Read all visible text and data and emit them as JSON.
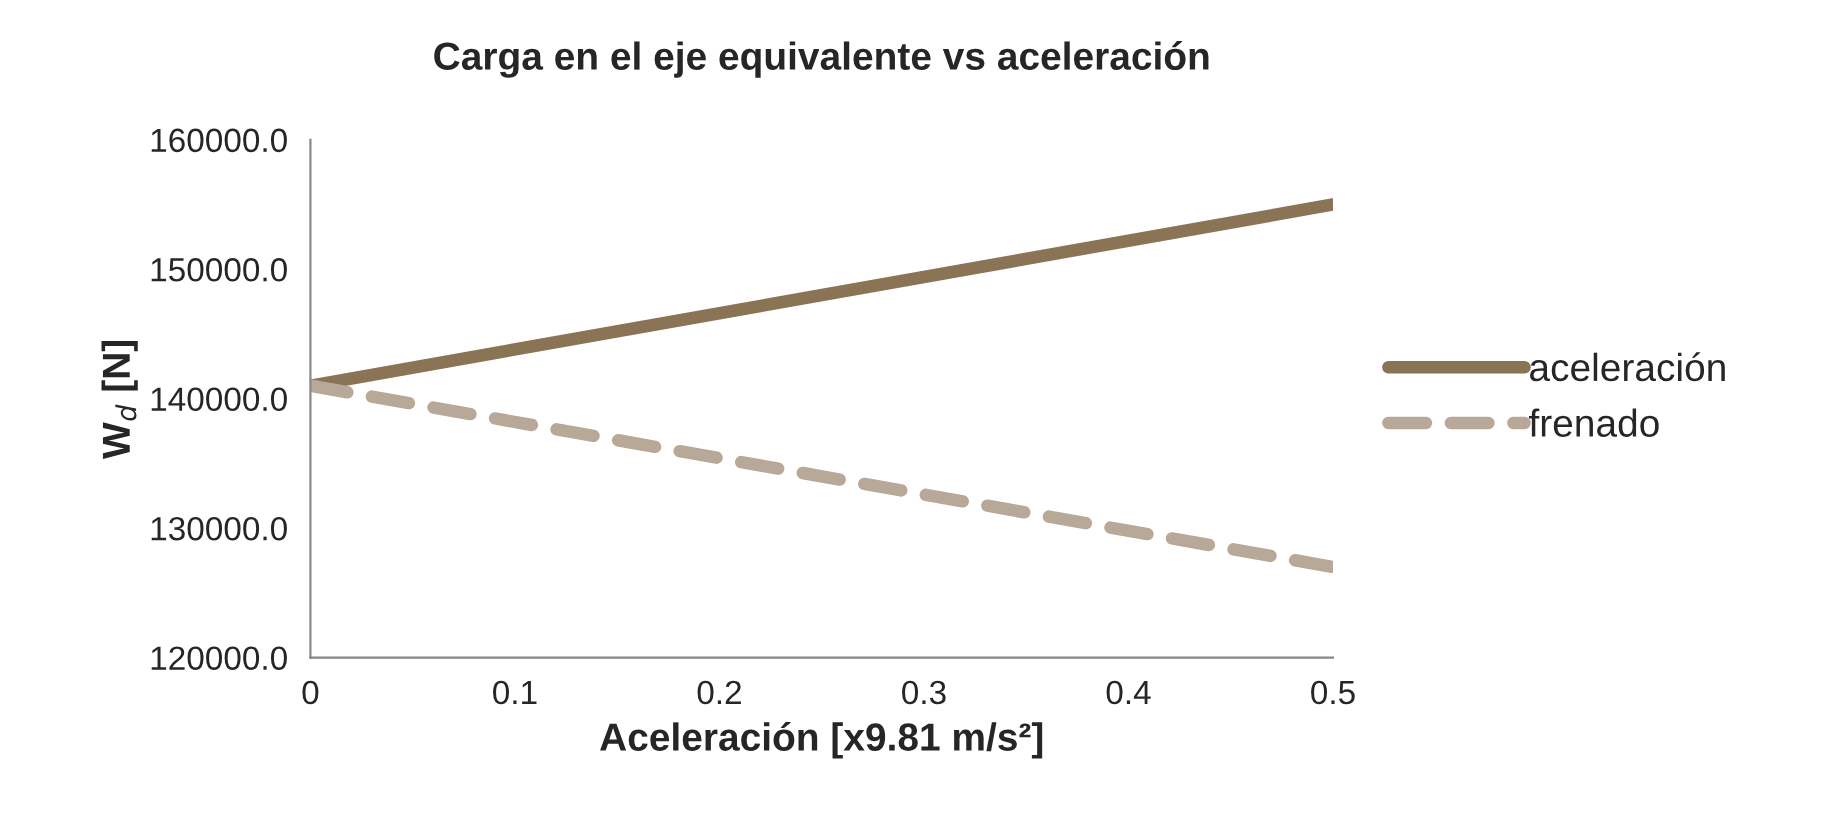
{
  "chart_data": {
    "type": "line",
    "title": "Carga en el eje equivalente vs aceleración",
    "xlabel": "Aceleración [x9.81 m/s²]",
    "ylabel": "W$_{d}$ [N]",
    "x": [
      0,
      0.5
    ],
    "series": [
      {
        "name": "aceleración",
        "color": "#8b7355",
        "values": [
          141000,
          155000
        ],
        "line_style": "solid"
      },
      {
        "name": "frenado",
        "color": "#b8a898",
        "values": [
          141000,
          127000
        ],
        "line_style": "dashed"
      }
    ],
    "xlim": [
      0,
      0.5
    ],
    "xticks": [
      0,
      0.1,
      0.2,
      0.3,
      0.4,
      0.5
    ],
    "ylim": [
      120000,
      160000
    ],
    "yticks": [
      {
        "value": 120000,
        "label": "120000.0"
      },
      {
        "value": 130000,
        "label": "130000.0"
      },
      {
        "value": 140000,
        "label": "140000.0"
      },
      {
        "value": 150000,
        "label": "150000.0"
      },
      {
        "value": 160000,
        "label": "160000.0"
      }
    ],
    "grid": false,
    "legend": "right",
    "marker": "none"
  }
}
